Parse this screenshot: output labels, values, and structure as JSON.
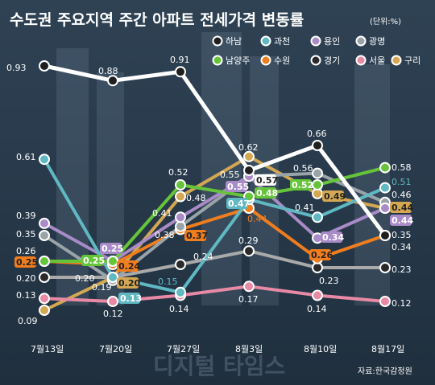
{
  "chart_data": {
    "type": "line",
    "title": "수도권 주요지역 주간 아파트 전세가격 변동률",
    "unit": "(단위:%)",
    "source": "자료:한국감정원",
    "watermark": "디지털 타임스",
    "categories": [
      "7월13일",
      "7월20일",
      "7월27일",
      "8월3일",
      "8월10일",
      "8월17일"
    ],
    "legend_position": "top-right",
    "grid": false,
    "series": [
      {
        "name": "하남",
        "color": "#1f1f1f",
        "line_color": "#ffffff",
        "values": [
          0.93,
          0.88,
          0.91,
          0.57,
          0.66,
          0.35
        ]
      },
      {
        "name": "과천",
        "color": "#5fb8c2",
        "line_color": "#5fb8c2",
        "values": [
          0.61,
          0.2,
          0.15,
          0.47,
          0.41,
          0.51
        ]
      },
      {
        "name": "용인",
        "color": "#a98bc7",
        "line_color": "#a98bc7",
        "values": [
          0.39,
          0.25,
          0.41,
          0.55,
          0.34,
          0.44
        ]
      },
      {
        "name": "광명",
        "color": "#9aa3a8",
        "line_color": "#9aa3a8",
        "values": [
          0.35,
          0.19,
          0.38,
          0.55,
          0.56,
          0.46
        ]
      },
      {
        "name": "남양주",
        "color": "#66c43a",
        "line_color": "#66c43a",
        "values": [
          0.25,
          0.25,
          0.52,
          0.48,
          0.52,
          0.58
        ]
      },
      {
        "name": "수원",
        "color": "#f07d1e",
        "line_color": "#f07d1e",
        "values": [
          0.25,
          0.24,
          0.37,
          0.44,
          0.26,
          0.35
        ]
      },
      {
        "name": "경기",
        "color": "#2a2a2a",
        "line_color": "#aaaaaa",
        "values": [
          0.2,
          0.2,
          0.24,
          0.29,
          0.23,
          0.23
        ]
      },
      {
        "name": "서울",
        "color": "#e88aa6",
        "line_color": "#e88aa6",
        "values": [
          0.13,
          0.12,
          0.14,
          0.17,
          0.14,
          0.12
        ]
      },
      {
        "name": "구리",
        "color": "#d4a853",
        "line_color": "#d4a853",
        "values": [
          0.09,
          0.2,
          0.48,
          0.62,
          0.49,
          0.44
        ]
      }
    ],
    "data_labels": [
      {
        "text": "0.93"
      },
      {
        "text": "0.88"
      },
      {
        "text": "0.91"
      },
      {
        "text": "0.62"
      },
      {
        "text": "0.66"
      },
      {
        "text": "0.61"
      },
      {
        "text": "0.57"
      },
      {
        "text": "0.56"
      },
      {
        "text": "0.58"
      },
      {
        "text": "0.52"
      },
      {
        "text": "0.55"
      },
      {
        "text": "0.55"
      },
      {
        "text": "0.52"
      },
      {
        "text": "0.51"
      },
      {
        "text": "0.48"
      },
      {
        "text": "0.47"
      },
      {
        "text": "0.48"
      },
      {
        "text": "0.49"
      },
      {
        "text": "0.46"
      },
      {
        "text": "0.39"
      },
      {
        "text": "0.41"
      },
      {
        "text": "0.41"
      },
      {
        "text": "0.44"
      },
      {
        "text": "0.44"
      },
      {
        "text": "0.38"
      },
      {
        "text": "0.37"
      },
      {
        "text": "0.44"
      },
      {
        "text": "0.35"
      },
      {
        "text": "0.34"
      },
      {
        "text": "0.35"
      },
      {
        "text": "0.34"
      },
      {
        "text": "0.26"
      },
      {
        "text": "0.25"
      },
      {
        "text": "0.29"
      },
      {
        "text": "0.25"
      },
      {
        "text": "0.25"
      },
      {
        "text": "0.24"
      },
      {
        "text": "0.24"
      },
      {
        "text": "0.26"
      },
      {
        "text": "0.20"
      },
      {
        "text": "0.20"
      },
      {
        "text": "0.19"
      },
      {
        "text": "0.20"
      },
      {
        "text": "0.23"
      },
      {
        "text": "0.23"
      },
      {
        "text": "0.15"
      },
      {
        "text": "0.13"
      },
      {
        "text": "0.13"
      },
      {
        "text": "0.12"
      },
      {
        "text": "0.14"
      },
      {
        "text": "0.17"
      },
      {
        "text": "0.14"
      },
      {
        "text": "0.12"
      },
      {
        "text": "0.09"
      }
    ]
  }
}
